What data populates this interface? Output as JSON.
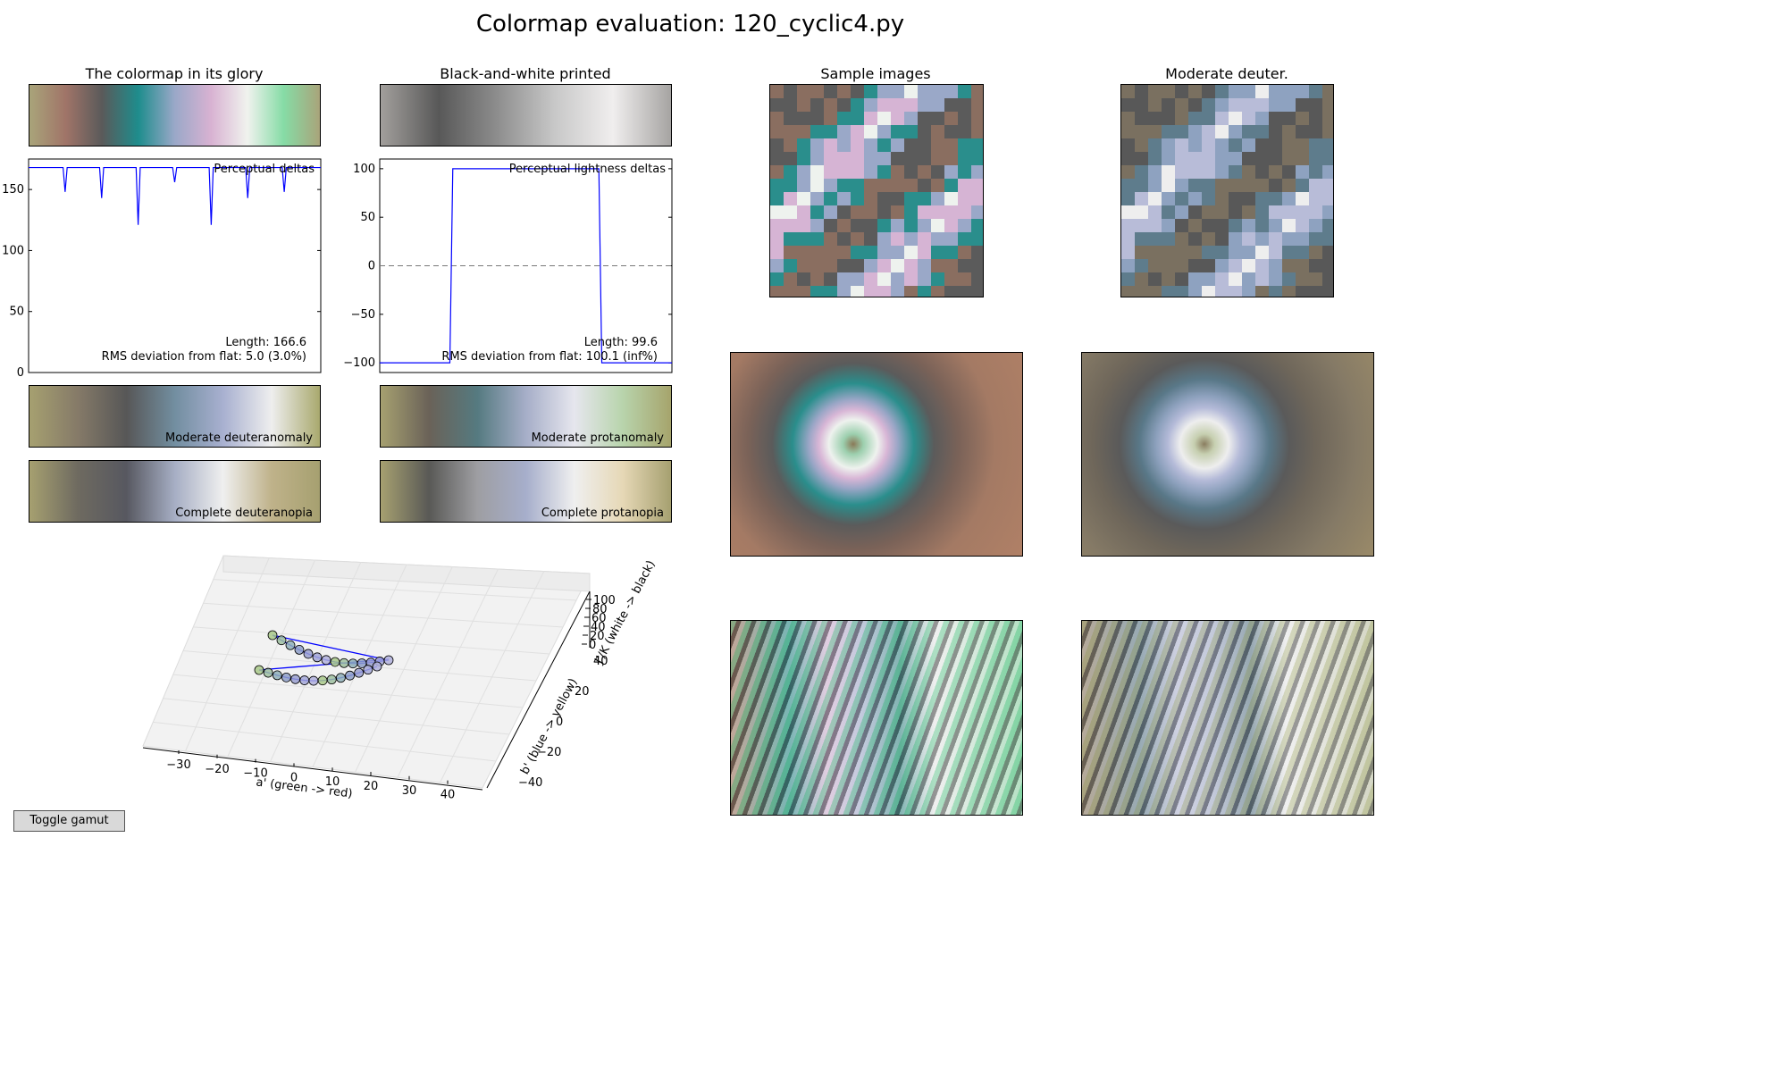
{
  "figure": {
    "title": "Colormap evaluation: 120_cyclic4.py",
    "toggle_button": "Toggle gamut"
  },
  "panels": {
    "glory_title": "The colormap in its glory",
    "bw_title": "Black-and-white printed",
    "samples_title": "Sample images",
    "deuter_title": "Moderate deuter."
  },
  "strips": {
    "moderate_deuteranomaly": "Moderate deuteranomaly",
    "moderate_protanomaly": "Moderate protanomaly",
    "complete_deuteranopia": "Complete deuteranopia",
    "complete_protanopia": "Complete protanopia"
  },
  "colors": {
    "glory": [
      "#a9a47a",
      "#a07468",
      "#5a5a5a",
      "#1e8d8d",
      "#9aa8c8",
      "#d8b2d2",
      "#f0f2ee",
      "#86dca6",
      "#a9a47a"
    ],
    "bw": [
      "#a29f9c",
      "#585858",
      "#8d8d8d",
      "#c8c8c8",
      "#f0eeee",
      "#a6a4a2"
    ],
    "mod_deuter": [
      "#a6a070",
      "#857a68",
      "#575757",
      "#728ea0",
      "#a8b0d0",
      "#eeeeee",
      "#a9a96e"
    ],
    "mod_prot": [
      "#a6a070",
      "#6a6258",
      "#557a80",
      "#a6aec8",
      "#e6e6ee",
      "#b8d4ac",
      "#a6a46c"
    ],
    "comp_deuter": [
      "#a6a070",
      "#6e6a60",
      "#575860",
      "#a6aec4",
      "#efefef",
      "#bfb28a",
      "#a6a070"
    ],
    "comp_prot": [
      "#a6a070",
      "#595956",
      "#9e9ea2",
      "#a6aecb",
      "#efefef",
      "#e6d8b6",
      "#a6a070"
    ],
    "line": "#0000ff"
  },
  "chart_data": [
    {
      "type": "line",
      "title": "Perceptual deltas",
      "ylim": [
        0,
        175
      ],
      "yticks": [
        "0",
        "50",
        "100",
        "150"
      ],
      "series": [
        {
          "x": [
            0,
            0.1,
            0.118,
            0.125,
            0.132,
            0.15,
            0.225,
            0.243,
            0.25,
            0.257,
            0.275,
            0.35,
            0.368,
            0.375,
            0.382,
            0.4,
            0.475,
            0.493,
            0.5,
            0.507,
            0.525,
            0.6,
            0.618,
            0.625,
            0.632,
            0.65,
            0.725,
            0.743,
            0.75,
            0.757,
            0.775,
            0.85,
            0.868,
            0.875,
            0.882,
            0.9,
            1
          ],
          "values": [
            168,
            168,
            168,
            148,
            168,
            168,
            168,
            168,
            143,
            168,
            168,
            168,
            168,
            121,
            168,
            168,
            168,
            168,
            156,
            168,
            168,
            168,
            168,
            121,
            168,
            168,
            168,
            168,
            143,
            168,
            168,
            168,
            168,
            148,
            168,
            168,
            168
          ]
        }
      ],
      "annotations": [
        "Length: 166.6",
        "RMS deviation from flat: 5.0 (3.0%)"
      ]
    },
    {
      "type": "line",
      "title": "Perceptual lightness deltas",
      "ylim": [
        -110,
        110
      ],
      "yticks": [
        "−100",
        "−50",
        "0",
        "50",
        "100"
      ],
      "series": [
        {
          "x": [
            0,
            0.24,
            0.25,
            0.75,
            0.76,
            1
          ],
          "values": [
            -100,
            -100,
            100,
            100,
            -100,
            -100
          ]
        }
      ],
      "annotations": [
        "Length: 99.6",
        "RMS deviation from flat: 100.1 (inf%)"
      ]
    },
    {
      "type": "scatter",
      "projection": "3d",
      "xlabel": "a' (green -> red)",
      "ylabel": "b' (blue -> yellow)",
      "zlabel": "J'/K (white -> black)",
      "xticks": [
        "−30",
        "−20",
        "−10",
        "0",
        "10",
        "20",
        "30",
        "40"
      ],
      "yticks": [
        "−40",
        "−20",
        "0",
        "20",
        "40"
      ],
      "zticks": [
        "0",
        "20",
        "40",
        "60",
        "80",
        "100"
      ]
    }
  ]
}
